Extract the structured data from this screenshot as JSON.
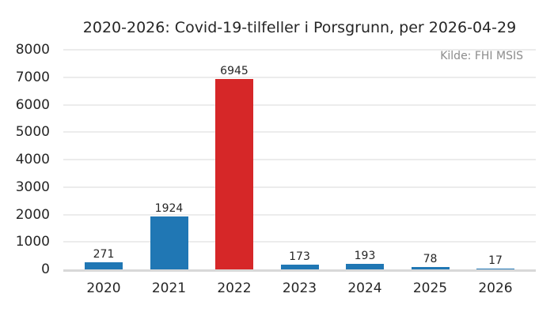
{
  "chart": {
    "title": "2020-2026: Covid-19-tilfeller i Porsgrunn, per 2026-04-29",
    "source": "Kilde: FHI MSIS"
  },
  "chart_data": {
    "type": "bar",
    "title": "2020-2026: Covid-19-tilfeller i Porsgrunn, per 2026-04-29",
    "source_annotation": "Kilde: FHI MSIS",
    "categories": [
      "2020",
      "2021",
      "2022",
      "2023",
      "2024",
      "2025",
      "2026"
    ],
    "values": [
      271,
      1924,
      6945,
      173,
      193,
      78,
      17
    ],
    "value_labels": [
      "271",
      "1924",
      "6945",
      "173",
      "193",
      "78",
      "17"
    ],
    "highlight_index": 2,
    "xlabel": "",
    "ylabel": "",
    "ylim": [
      0,
      8000
    ],
    "ytick_step": 1000,
    "yticks": [
      0,
      1000,
      2000,
      3000,
      4000,
      5000,
      6000,
      7000,
      8000
    ],
    "grid": true,
    "legend": false,
    "colors": {
      "bar": "#2077b4",
      "bar_highlight": "#d62728",
      "grid": "#ececec",
      "baseline": "#d8d8d8",
      "text": "#262626",
      "muted_text": "#8c8c8c"
    }
  }
}
